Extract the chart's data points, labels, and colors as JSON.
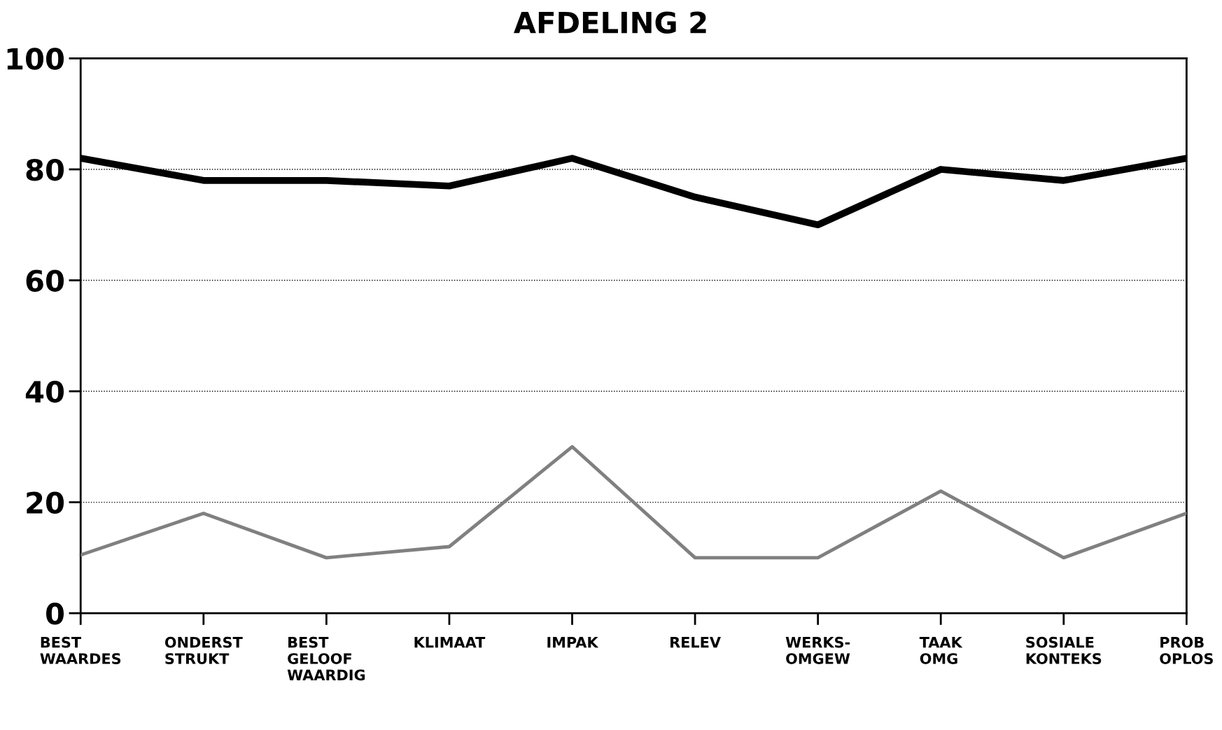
{
  "chart_data": {
    "type": "line",
    "title": "AFDELING 2",
    "categories": [
      "BEST\nWAARDES",
      "ONDERST\nSTRUKT",
      "BEST\nGELOOF\nWAARDIG",
      "KLIMAAT",
      "IMPAK",
      "RELEV",
      "WERKS-\nOMGEW",
      "TAAK\nOMG",
      "SOSIALE\nKONTEKS",
      "PROB\nOPLOS"
    ],
    "series": [
      {
        "color": "#000000",
        "values": [
          82,
          78,
          78,
          77,
          82,
          75,
          70,
          80,
          78,
          82
        ]
      },
      {
        "color": "#808080",
        "values": [
          10.5,
          18,
          10,
          12,
          30,
          10,
          10,
          22,
          10,
          18
        ]
      }
    ],
    "ylim": [
      0,
      100
    ],
    "yticks": [
      0,
      20,
      40,
      60,
      80,
      100
    ],
    "grid": "y",
    "marker": "none",
    "line_style": "solid"
  }
}
